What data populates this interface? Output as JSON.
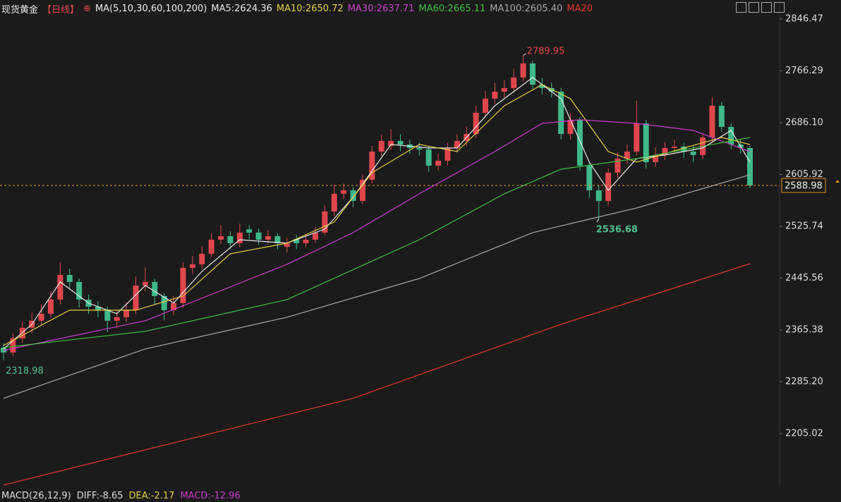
{
  "chart_data": {
    "type": "candlestick",
    "title": "现货黄金",
    "period": "【日线】",
    "indicator": "MA(5,10,30,60,100,200)",
    "up_color": "#e0474c",
    "down_color": "#3fb98a",
    "open": [
      2338,
      2330.5,
      2352.3,
      2368.7,
      2379.6,
      2390.5,
      2412.3,
      2450.5,
      2439.6,
      2412.3,
      2401.4,
      2396.0,
      2379.6,
      2385.1,
      2396.0,
      2434.1,
      2439.6,
      2417.8,
      2396.0,
      2406.9,
      2461.4,
      2466.9,
      2483.2,
      2505.0,
      2510.5,
      2499.6,
      2521,
      2516.0,
      2505.0,
      2510.5,
      2494,
      2506,
      2499.6,
      2505.0,
      2516.0,
      2548.7,
      2576.0,
      2581.4,
      2565.0,
      2597.8,
      2641.4,
      2650,
      2657.8,
      2652.3,
      2646.9,
      2644.7,
      2619.6,
      2627.2,
      2646.9,
      2657.8,
      2668.7,
      2701.4,
      2723.2,
      2734.1,
      2739.6,
      2756.0,
      2777.8,
      2745.0,
      2739.6,
      2734.1,
      2668.7,
      2690.5,
      2619.6,
      2581.4,
      2565.0,
      2608.7,
      2630.5,
      2641.4,
      2685.0,
      2625.0,
      2636.0,
      2646.9,
      2649.0,
      2641.4,
      2636.0,
      2663.2,
      2712.3,
      2679.6,
      2652.3,
      2646.9
    ],
    "high": [
      2345,
      2360,
      2378,
      2392,
      2405,
      2425,
      2470,
      2460,
      2445,
      2420,
      2410,
      2402,
      2395,
      2408,
      2448,
      2462,
      2445,
      2422,
      2418,
      2470,
      2480,
      2495,
      2515,
      2528,
      2518,
      2530,
      2528,
      2522,
      2520,
      2515,
      2508,
      2512,
      2513,
      2525,
      2558,
      2590,
      2592,
      2586,
      2606,
      2650,
      2668,
      2676,
      2668,
      2660,
      2655,
      2650,
      2638,
      2655,
      2668,
      2680,
      2712,
      2735,
      2748,
      2752,
      2770,
      2789.95,
      2782,
      2755,
      2748,
      2740,
      2700,
      2695,
      2625,
      2590,
      2615,
      2640,
      2652,
      2720,
      2690,
      2648,
      2656,
      2660,
      2655,
      2650,
      2670,
      2725,
      2718,
      2685,
      2660,
      2650
    ],
    "low": [
      2318.98,
      2325,
      2345,
      2360,
      2372,
      2385,
      2405,
      2430,
      2400,
      2390,
      2385,
      2362,
      2368,
      2378,
      2390,
      2425,
      2405,
      2380,
      2388,
      2400,
      2452,
      2460,
      2478,
      2498,
      2490,
      2493,
      2506,
      2497,
      2498,
      2490,
      2485,
      2490,
      2494,
      2500,
      2512,
      2542,
      2568,
      2555,
      2560,
      2592,
      2635,
      2644,
      2642,
      2638,
      2635,
      2610,
      2612,
      2620,
      2640,
      2650,
      2662,
      2695,
      2715,
      2725,
      2733,
      2750,
      2738,
      2730,
      2725,
      2660,
      2660,
      2612,
      2570,
      2536.68,
      2558,
      2600,
      2622,
      2635,
      2615,
      2618,
      2628,
      2638,
      2632,
      2625,
      2630,
      2655,
      2672,
      2645,
      2638,
      2585
    ],
    "close": [
      2330.5,
      2352.3,
      2368.7,
      2379.6,
      2390.5,
      2412.3,
      2450.5,
      2439.6,
      2412.3,
      2401.4,
      2396.0,
      2379.6,
      2385.1,
      2396.0,
      2434.1,
      2439.6,
      2417.8,
      2396.0,
      2406.9,
      2461.4,
      2466.9,
      2483.2,
      2505.0,
      2510.5,
      2499.6,
      2516.0,
      2516.0,
      2505.0,
      2510.5,
      2499.6,
      2499.6,
      2499.6,
      2505.0,
      2516.0,
      2548.7,
      2576.0,
      2581.4,
      2565.0,
      2597.8,
      2641.4,
      2657.8,
      2657.8,
      2652.3,
      2646.9,
      2644.7,
      2619.6,
      2627.2,
      2646.9,
      2657.8,
      2668.7,
      2701.4,
      2723.2,
      2734.1,
      2739.6,
      2756.0,
      2777.8,
      2745.0,
      2739.6,
      2734.1,
      2668.7,
      2690.5,
      2619.6,
      2581.4,
      2565.0,
      2608.7,
      2630.5,
      2641.4,
      2685.0,
      2625.0,
      2636.0,
      2646.9,
      2649.0,
      2641.4,
      2636.0,
      2663.2,
      2712.3,
      2679.6,
      2652.3,
      2646.9,
      2588.98
    ],
    "series": [
      {
        "name": "MA5:2624.36",
        "color": "#e8e8e8",
        "x": [
          0,
          3,
          6,
          9,
          12,
          15,
          18,
          21,
          25,
          30,
          34,
          37,
          41,
          45,
          48,
          52,
          56,
          59,
          62,
          64,
          67,
          70,
          74,
          77,
          79
        ],
        "values": [
          2336.0,
          2374.1,
          2439.6,
          2406.9,
          2390.5,
          2434.1,
          2406.9,
          2456.0,
          2505.0,
          2499.6,
          2521.4,
          2570.5,
          2652.3,
          2646.9,
          2646.9,
          2712.3,
          2756.0,
          2723.2,
          2625.0,
          2581.4,
          2630.5,
          2636.0,
          2646.9,
          2674.1,
          2625.0
        ]
      },
      {
        "name": "MA10:2650.72",
        "color": "#e3cf45",
        "x": [
          0,
          7,
          14,
          19,
          24,
          30,
          35,
          39,
          44,
          48,
          53,
          57,
          60,
          64,
          67,
          72,
          76,
          79
        ],
        "values": [
          2341.4,
          2396.0,
          2396.0,
          2417.8,
          2483.2,
          2499.6,
          2532.3,
          2608.7,
          2652.3,
          2641.4,
          2712.3,
          2745.0,
          2723.2,
          2641.4,
          2625.0,
          2646.9,
          2663.2,
          2652.3
        ]
      },
      {
        "name": "MA30:2637.71",
        "color": "#c93ccf",
        "x": [
          0,
          15,
          30,
          37,
          44,
          52,
          57,
          61,
          67,
          73,
          79
        ],
        "values": [
          2333.7,
          2379.6,
          2466.9,
          2516.0,
          2576.0,
          2641.4,
          2685.0,
          2690.5,
          2685.0,
          2674.1,
          2641.4
        ]
      },
      {
        "name": "MA60:2665.11",
        "color": "#3fbf3f",
        "x": [
          0,
          15,
          30,
          44,
          53,
          59,
          67,
          79
        ],
        "values": [
          2338.1,
          2363.2,
          2412.3,
          2505.0,
          2576.0,
          2614.1,
          2630.5,
          2663.2
        ]
      },
      {
        "name": "MA100:2605.40",
        "color": "#a8a8a8",
        "x": [
          0,
          15,
          30,
          44,
          56,
          67,
          79
        ],
        "values": [
          2259.6,
          2336.0,
          2385.1,
          2445.0,
          2516.0,
          2554.1,
          2605.4
        ]
      },
      {
        "name": "MA20",
        "color": "#e03a32",
        "x": [
          0,
          37,
          59,
          79
        ],
        "values": [
          2125.4,
          2259.6,
          2374.1,
          2467.9
        ]
      }
    ],
    "ylim": [
      2123.1,
      2875.9
    ],
    "yticks": [
      2846.47,
      2766.29,
      {
        "value": 2686.1,
        "label": "2686.10"
      },
      2605.92,
      2525.74,
      2445.56,
      2365.38,
      {
        "value": 2285.2,
        "label": "2285.20"
      },
      2205.02
    ],
    "last_price_line": true,
    "macd": {
      "label": "MACD(26,12,9)",
      "diff": "DIFF:-8.65",
      "dea": "DEA:-2.17",
      "macd": "MACD:-12.96"
    }
  }
}
